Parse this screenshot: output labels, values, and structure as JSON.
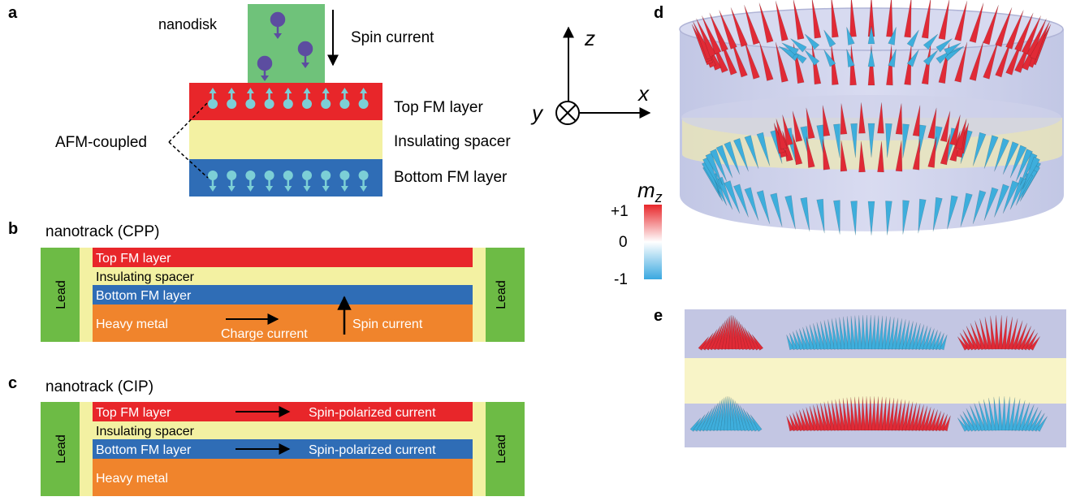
{
  "panels": {
    "a": "a",
    "b": "b",
    "c": "c",
    "d": "d",
    "e": "e"
  },
  "panel_a": {
    "nanodisk": "nanodisk",
    "spin_current": "Spin current",
    "top_fm": "Top FM layer",
    "spacer": "Insulating spacer",
    "bottom_fm": "Bottom FM layer",
    "afm": "AFM-coupled"
  },
  "axes": {
    "z": "z",
    "x": "x",
    "y": "y"
  },
  "panel_b": {
    "title": "nanotrack (CPP)",
    "top_fm": "Top FM layer",
    "spacer": "Insulating spacer",
    "bottom_fm": "Bottom FM layer",
    "heavy_metal": "Heavy metal",
    "charge_current": "Charge current",
    "spin_current": "Spin current",
    "lead": "Lead"
  },
  "panel_c": {
    "title": "nanotrack (CIP)",
    "top_fm": "Top FM layer",
    "spacer": "Insulating spacer",
    "bottom_fm": "Bottom FM layer",
    "heavy_metal": "Heavy metal",
    "spin_polarized_top": "Spin-polarized current",
    "spin_polarized_bottom": "Spin-polarized current",
    "lead": "Lead"
  },
  "colorbar": {
    "label": "m",
    "label_sub": "z",
    "max": "+1",
    "mid": "0",
    "min": "-1"
  },
  "colors": {
    "top_fm": "#e8262a",
    "spacer": "#f3f1a2",
    "bottom_fm": "#2f6db6",
    "heavy_metal": "#f0842c",
    "lead": "#6dbb45",
    "nanodisk": "#6fc27a",
    "spin_dot": "#7ccfd6",
    "electron": "#5c4da0",
    "cone_red": "#e02a36",
    "cone_blue": "#3eaedc"
  }
}
